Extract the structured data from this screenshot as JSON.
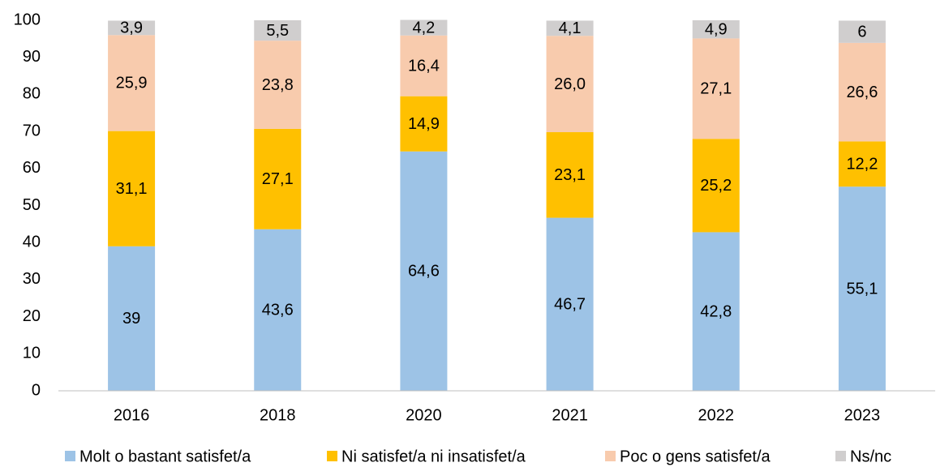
{
  "chart_data": {
    "type": "stacked_bar",
    "categories": [
      "2016",
      "2018",
      "2020",
      "2021",
      "2022",
      "2023"
    ],
    "series": [
      {
        "name": "Molt o bastant satisfet/a",
        "color": "#9dc3e6",
        "values": [
          39,
          43.6,
          64.6,
          46.7,
          42.8,
          55.1
        ],
        "value_labels": [
          "39",
          "43,6",
          "64,6",
          "46,7",
          "42,8",
          "55,1"
        ]
      },
      {
        "name": "Ni satisfet/a ni insatisfet/a",
        "color": "#ffc000",
        "values": [
          31.1,
          27.1,
          14.9,
          23.1,
          25.2,
          12.2
        ],
        "value_labels": [
          "31,1",
          "27,1",
          "14,9",
          "23,1",
          "25,2",
          "12,2"
        ]
      },
      {
        "name": "Poc o gens satisfet/a",
        "color": "#f8cbad",
        "values": [
          25.9,
          23.8,
          16.4,
          26.0,
          27.1,
          26.6
        ],
        "value_labels": [
          "25,9",
          "23,8",
          "16,4",
          "26,0",
          "27,1",
          "26,6"
        ]
      },
      {
        "name": "Ns/nc",
        "color": "#d0cece",
        "values": [
          3.9,
          5.5,
          4.2,
          4.1,
          4.9,
          6
        ],
        "value_labels": [
          "3,9",
          "5,5",
          "4,2",
          "4,1",
          "4,9",
          "6"
        ]
      }
    ],
    "ylim": [
      0,
      100
    ],
    "yticks": [
      0,
      10,
      20,
      30,
      40,
      50,
      60,
      70,
      80,
      90,
      100
    ],
    "grid": false,
    "legend": "bottom"
  }
}
